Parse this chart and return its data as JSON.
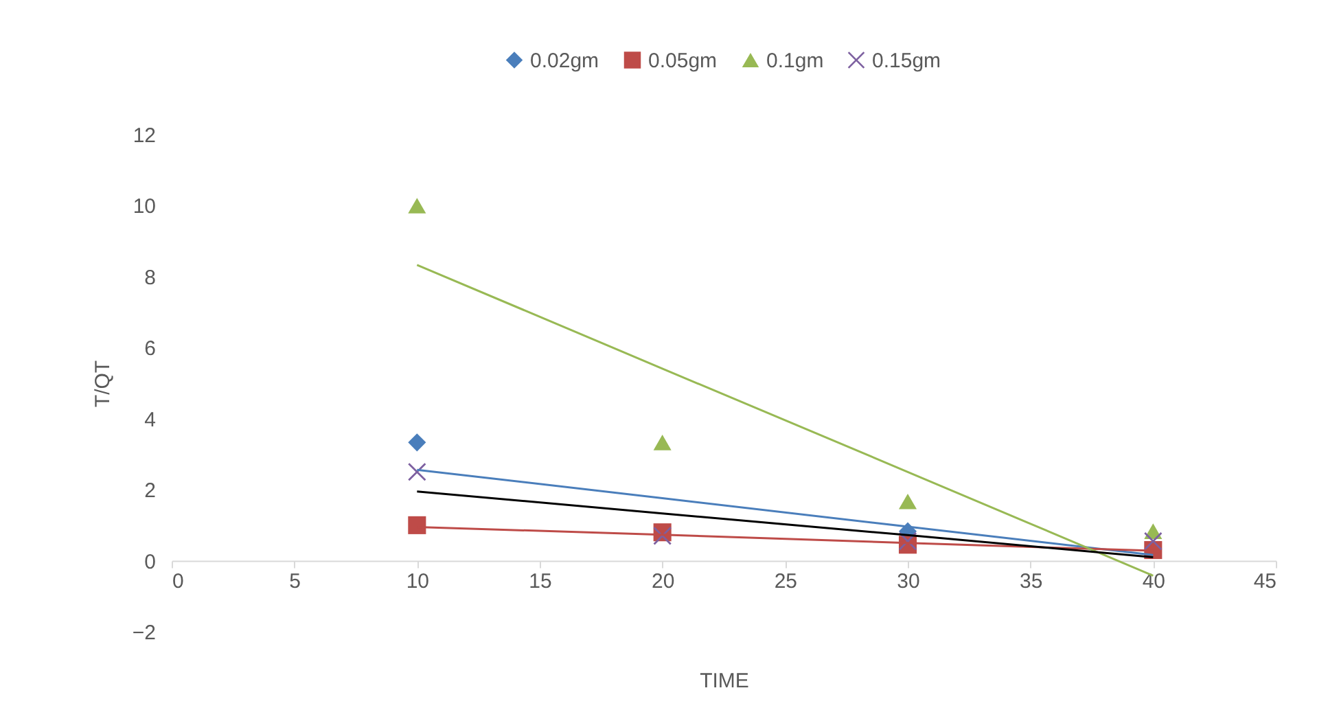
{
  "chart_data": {
    "type": "scatter",
    "xlabel": "TIME",
    "ylabel": "T/QT",
    "x": [
      10,
      20,
      30,
      40
    ],
    "series": [
      {
        "name": "0.02gm",
        "color": "#4a7ebb",
        "marker": "diamond",
        "values": [
          3.33,
          null,
          0.83,
          null
        ]
      },
      {
        "name": "0.05gm",
        "color": "#be4b48",
        "marker": "square",
        "values": [
          1.0,
          0.8,
          0.45,
          0.3
        ]
      },
      {
        "name": "0.1gm",
        "color": "#98b954",
        "marker": "triangle",
        "values": [
          10,
          3.33,
          1.67,
          0.83
        ]
      },
      {
        "name": "0.15gm",
        "color": "#7d60a0",
        "marker": "cross",
        "values": [
          2.5,
          0.7,
          0.55,
          0.55
        ]
      },
      {
        "type": "line",
        "color": "#4a7ebb",
        "values": [
          2.56,
          1.76,
          0.96,
          0.16
        ]
      },
      {
        "type": "line",
        "color": "#be4b48",
        "values": [
          0.95,
          0.73,
          0.5,
          0.28
        ]
      },
      {
        "type": "line",
        "color": "#98b954",
        "values": [
          8.33,
          5.41,
          2.5,
          -0.42
        ]
      },
      {
        "type": "line",
        "color": "#000000",
        "values": [
          1.95,
          1.33,
          0.72,
          0.1
        ]
      }
    ],
    "xlim": [
      0,
      45
    ],
    "xticks": [
      0,
      5,
      10,
      15,
      20,
      25,
      30,
      35,
      40,
      45
    ],
    "ylim": [
      -2,
      12
    ],
    "yticks": [
      -2,
      0,
      2,
      4,
      6,
      8,
      10,
      12
    ],
    "grid": false,
    "legend": "top"
  }
}
